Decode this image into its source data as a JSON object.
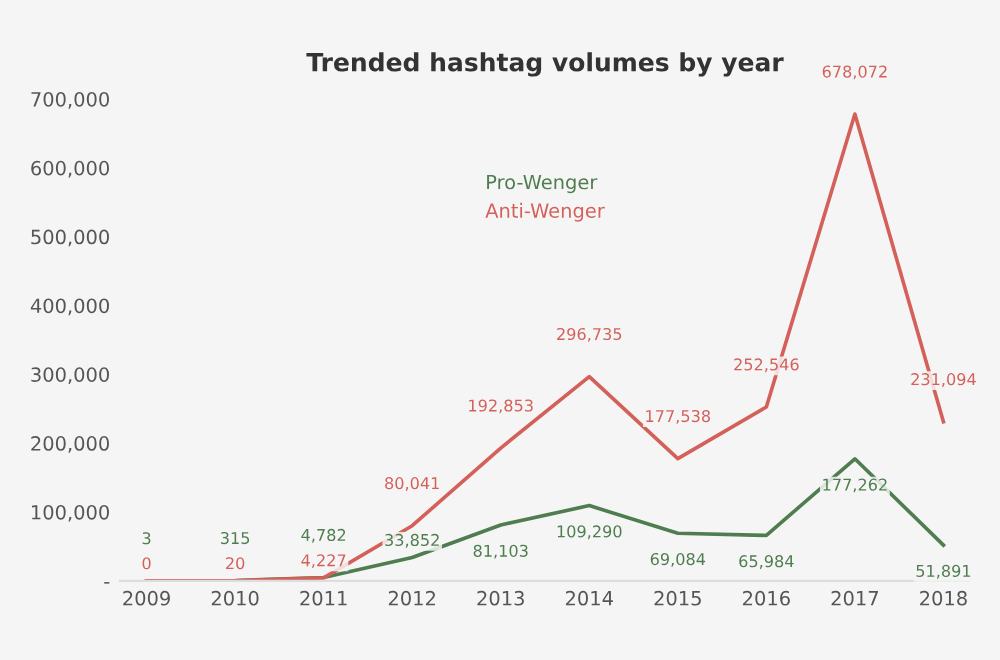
{
  "chart_data": {
    "type": "line",
    "title": "Trended hashtag volumes by year",
    "categories": [
      "2009",
      "2010",
      "2011",
      "2012",
      "2013",
      "2014",
      "2015",
      "2016",
      "2017",
      "2018"
    ],
    "series": [
      {
        "name": "Pro-Wenger",
        "color": "#4f7d4f",
        "values": [
          3,
          315,
          4782,
          33852,
          81103,
          109290,
          69084,
          65984,
          177262,
          51891
        ],
        "value_labels": [
          "3",
          "315",
          "4,782",
          "33,852",
          "81,103",
          "109,290",
          "69,084",
          "65,984",
          "177,262",
          "51,891"
        ]
      },
      {
        "name": "Anti-Wenger",
        "color": "#d4605a",
        "values": [
          0,
          20,
          4227,
          80041,
          192853,
          296735,
          177538,
          252546,
          678072,
          231094
        ],
        "value_labels": [
          "0",
          "20",
          "4,227",
          "80,041",
          "192,853",
          "296,735",
          "177,538",
          "252,546",
          "678,072",
          "231,094"
        ]
      }
    ],
    "ylim": [
      0,
      700000
    ],
    "yticks": [
      {
        "value": 0,
        "label": "-"
      },
      {
        "value": 100000,
        "label": "100,000"
      },
      {
        "value": 200000,
        "label": "200,000"
      },
      {
        "value": 300000,
        "label": "300,000"
      },
      {
        "value": 400000,
        "label": "400,000"
      },
      {
        "value": 500000,
        "label": "500,000"
      },
      {
        "value": 600000,
        "label": "600,000"
      },
      {
        "value": 700000,
        "label": "700,000"
      }
    ],
    "grid": false,
    "legend": "top",
    "marker": "none",
    "line_style": "solid"
  }
}
